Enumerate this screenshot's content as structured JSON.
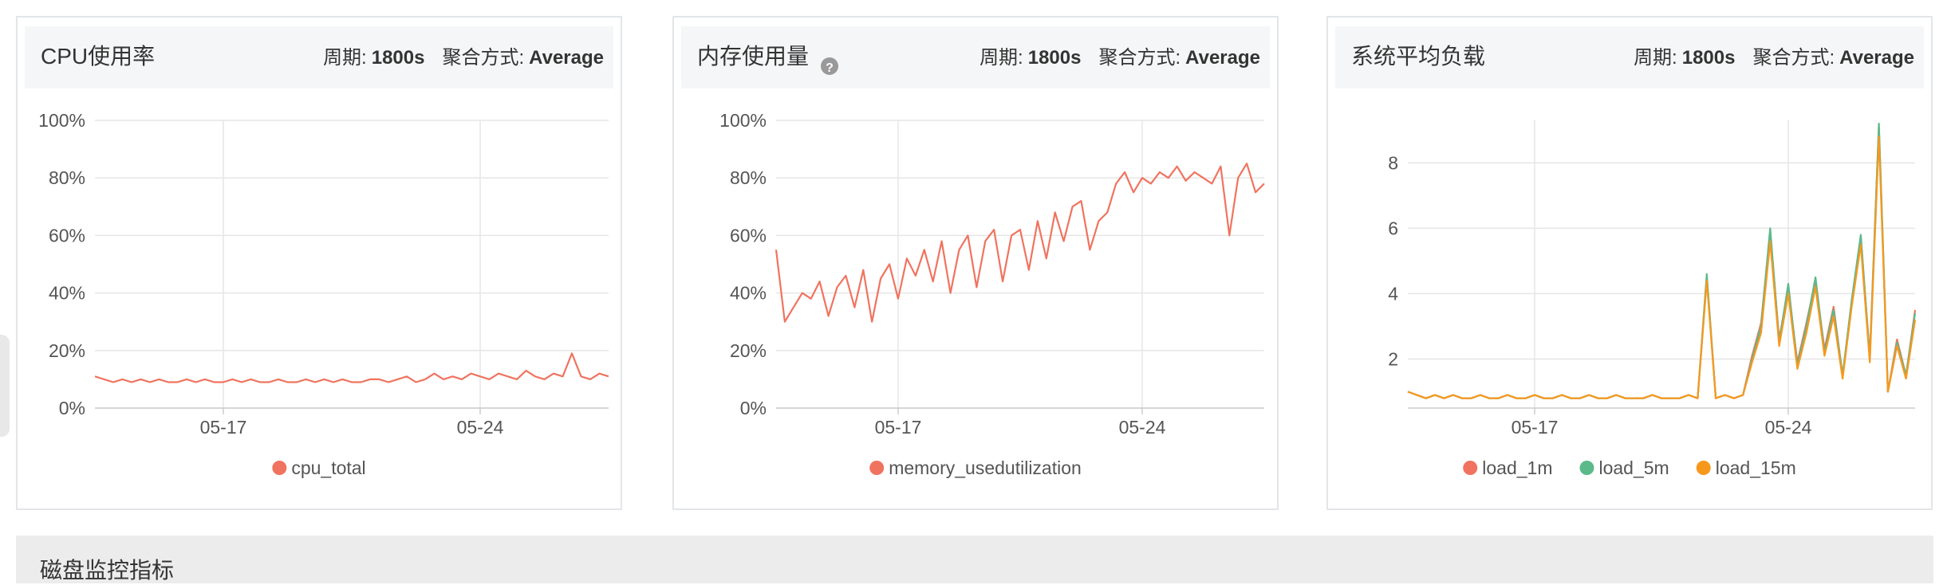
{
  "chart_data": [
    {
      "type": "line",
      "title": "CPU使用率",
      "period_label": "周期:",
      "period": "1800s",
      "agg_label": "聚合方式:",
      "agg": "Average",
      "categories": [
        null,
        null,
        null,
        null,
        null,
        null,
        null,
        null,
        null,
        null,
        null,
        null,
        null,
        null,
        "05-17",
        null,
        null,
        null,
        null,
        null,
        null,
        null,
        null,
        null,
        null,
        null,
        null,
        null,
        null,
        null,
        null,
        null,
        null,
        null,
        null,
        null,
        null,
        null,
        null,
        null,
        null,
        null,
        "05-24",
        null,
        null,
        null,
        null,
        null,
        null,
        null,
        null,
        null,
        null,
        null,
        null,
        null,
        null
      ],
      "ylim": [
        0,
        100
      ],
      "yticks": [
        {
          "value": 0,
          "label": "0%"
        },
        {
          "value": 20,
          "label": "20%"
        },
        {
          "value": 40,
          "label": "40%"
        },
        {
          "value": 60,
          "label": "60%"
        },
        {
          "value": 80,
          "label": "80%"
        },
        {
          "value": 100,
          "label": "100%"
        }
      ],
      "grid": true,
      "series": [
        {
          "name": "cpu_total",
          "color": "#f0735f",
          "values": [
            11,
            10,
            9,
            10,
            9,
            10,
            9,
            10,
            9,
            9,
            10,
            9,
            10,
            9,
            9,
            10,
            9,
            10,
            9,
            9,
            10,
            9,
            9,
            10,
            9,
            10,
            9,
            10,
            9,
            9,
            10,
            10,
            9,
            10,
            11,
            9,
            10,
            12,
            10,
            11,
            10,
            12,
            11,
            10,
            12,
            11,
            10,
            13,
            11,
            10,
            12,
            11,
            19,
            11,
            10,
            12,
            11
          ]
        }
      ]
    },
    {
      "type": "line",
      "title": "内存使用量",
      "period_label": "周期:",
      "period": "1800s",
      "agg_label": "聚合方式:",
      "agg": "Average",
      "categories": [
        null,
        null,
        null,
        null,
        null,
        null,
        null,
        null,
        null,
        null,
        null,
        null,
        null,
        null,
        "05-17",
        null,
        null,
        null,
        null,
        null,
        null,
        null,
        null,
        null,
        null,
        null,
        null,
        null,
        null,
        null,
        null,
        null,
        null,
        null,
        null,
        null,
        null,
        null,
        null,
        null,
        null,
        null,
        "05-24",
        null,
        null,
        null,
        null,
        null,
        null,
        null,
        null,
        null,
        null,
        null,
        null,
        null,
        null
      ],
      "ylim": [
        0,
        100
      ],
      "yticks": [
        {
          "value": 0,
          "label": "0%"
        },
        {
          "value": 20,
          "label": "20%"
        },
        {
          "value": 40,
          "label": "40%"
        },
        {
          "value": 60,
          "label": "60%"
        },
        {
          "value": 80,
          "label": "80%"
        },
        {
          "value": 100,
          "label": "100%"
        }
      ],
      "grid": true,
      "series": [
        {
          "name": "memory_usedutilization",
          "color": "#f0735f",
          "values": [
            55,
            30,
            35,
            40,
            38,
            44,
            32,
            42,
            46,
            35,
            48,
            30,
            45,
            50,
            38,
            52,
            46,
            55,
            44,
            58,
            40,
            55,
            60,
            42,
            58,
            62,
            44,
            60,
            62,
            48,
            65,
            52,
            68,
            58,
            70,
            72,
            55,
            65,
            68,
            78,
            82,
            75,
            80,
            78,
            82,
            80,
            84,
            79,
            82,
            80,
            78,
            84,
            60,
            80,
            85,
            75,
            78
          ]
        }
      ]
    },
    {
      "type": "line",
      "title": "系统平均负载",
      "period_label": "周期:",
      "period": "1800s",
      "agg_label": "聚合方式:",
      "agg": "Average",
      "categories": [
        null,
        null,
        null,
        null,
        null,
        null,
        null,
        null,
        null,
        null,
        null,
        null,
        null,
        null,
        "05-17",
        null,
        null,
        null,
        null,
        null,
        null,
        null,
        null,
        null,
        null,
        null,
        null,
        null,
        null,
        null,
        null,
        null,
        null,
        null,
        null,
        null,
        null,
        null,
        null,
        null,
        null,
        null,
        "05-24",
        null,
        null,
        null,
        null,
        null,
        null,
        null,
        null,
        null,
        null,
        null,
        null,
        null,
        null
      ],
      "ylim": [
        0.5,
        9.3
      ],
      "yticks": [
        2,
        4,
        6,
        8
      ],
      "grid": true,
      "series": [
        {
          "name": "load_1m",
          "color": "#f0735f",
          "values": [
            1.0,
            0.9,
            0.8,
            0.9,
            0.8,
            0.9,
            0.8,
            0.8,
            0.9,
            0.8,
            0.8,
            0.9,
            0.8,
            0.8,
            0.9,
            0.8,
            0.8,
            0.9,
            0.8,
            0.8,
            0.9,
            0.8,
            0.8,
            0.9,
            0.8,
            0.8,
            0.8,
            0.9,
            0.8,
            0.8,
            0.8,
            0.9,
            0.8,
            4.5,
            0.8,
            0.9,
            0.8,
            0.9,
            2.1,
            3.1,
            5.9,
            2.6,
            4.2,
            1.9,
            3.1,
            4.4,
            2.3,
            3.6,
            1.5,
            3.7,
            5.7,
            2.1,
            9.1,
            1.0,
            2.6,
            1.5,
            3.5
          ]
        },
        {
          "name": "load_5m",
          "color": "#5cb98a",
          "values": [
            1.0,
            0.9,
            0.8,
            0.9,
            0.8,
            0.9,
            0.8,
            0.8,
            0.9,
            0.8,
            0.8,
            0.9,
            0.8,
            0.8,
            0.9,
            0.8,
            0.8,
            0.9,
            0.8,
            0.8,
            0.9,
            0.8,
            0.8,
            0.9,
            0.8,
            0.8,
            0.8,
            0.9,
            0.8,
            0.8,
            0.8,
            0.9,
            0.8,
            4.6,
            0.8,
            0.9,
            0.8,
            0.9,
            2.0,
            3.0,
            6.0,
            2.5,
            4.3,
            1.8,
            3.0,
            4.5,
            2.2,
            3.5,
            1.5,
            3.8,
            5.8,
            2.0,
            9.2,
            1.0,
            2.5,
            1.5,
            3.4
          ]
        },
        {
          "name": "load_15m",
          "color": "#f7981d",
          "values": [
            1.0,
            0.9,
            0.8,
            0.9,
            0.8,
            0.9,
            0.8,
            0.8,
            0.9,
            0.8,
            0.8,
            0.9,
            0.8,
            0.8,
            0.9,
            0.8,
            0.8,
            0.9,
            0.8,
            0.8,
            0.9,
            0.8,
            0.8,
            0.9,
            0.8,
            0.8,
            0.8,
            0.9,
            0.8,
            0.8,
            0.8,
            0.9,
            0.8,
            4.4,
            0.8,
            0.9,
            0.8,
            0.9,
            1.9,
            2.8,
            5.6,
            2.4,
            4.0,
            1.7,
            2.8,
            4.2,
            2.1,
            3.3,
            1.4,
            3.6,
            5.5,
            1.9,
            8.8,
            1.0,
            2.4,
            1.4,
            3.2
          ]
        }
      ]
    }
  ],
  "section_title": "磁盘监控指标"
}
